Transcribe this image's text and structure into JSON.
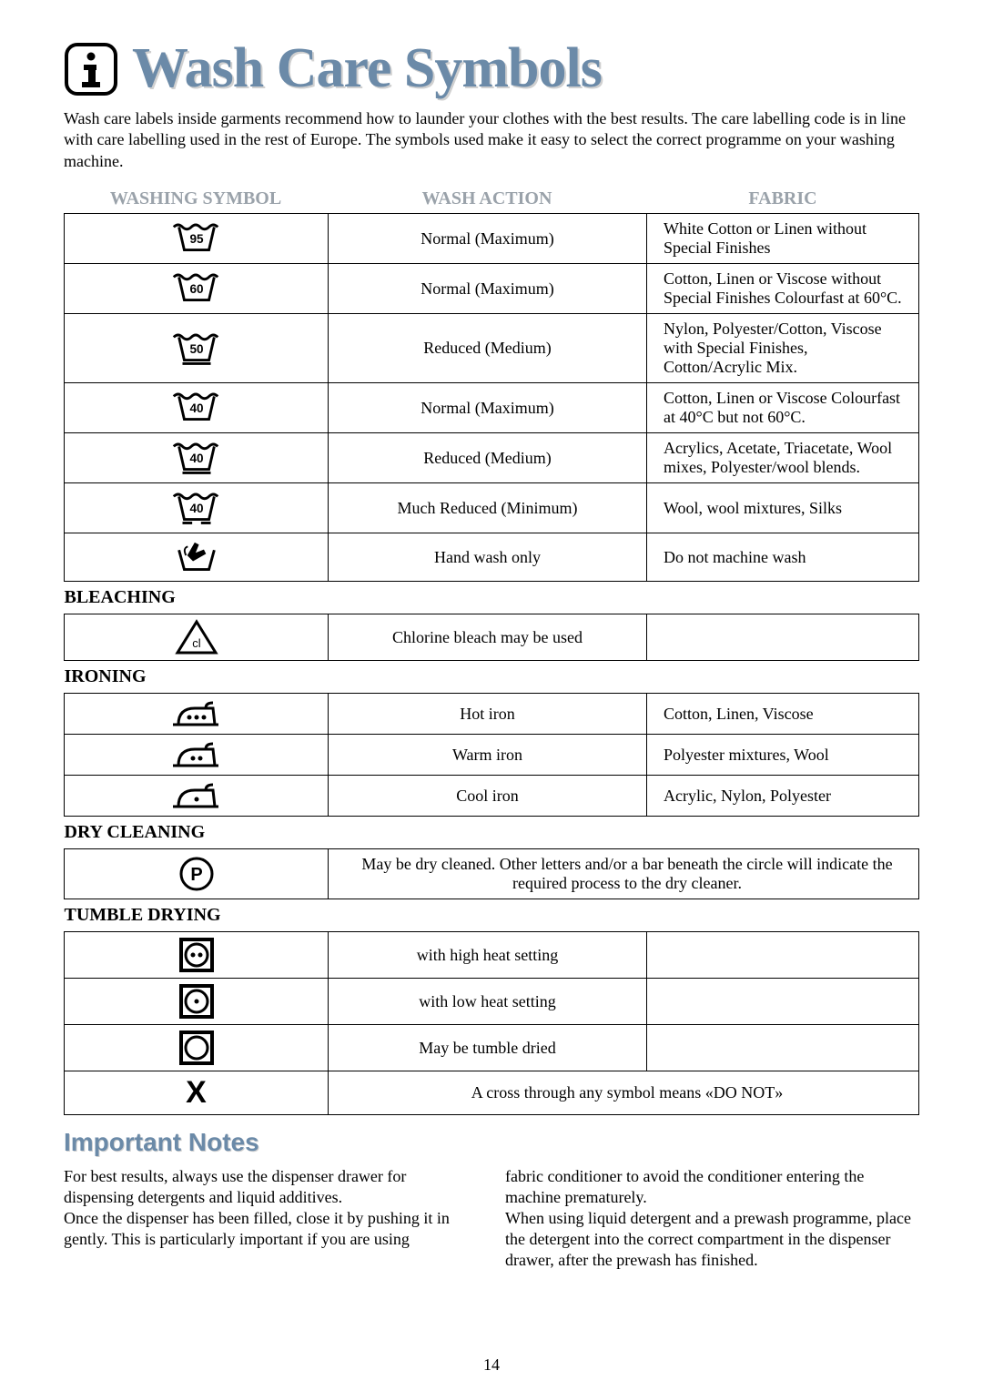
{
  "title": "Wash Care Symbols",
  "intro": "Wash care labels inside garments recommend how to launder your clothes with the best results. The care labelling code is in line with care labelling used in the rest of Europe. The symbols used make it easy to select the correct programme on your washing machine.",
  "headers": {
    "c1": "WASHING SYMBOL",
    "c2": "WASH ACTION",
    "c3": "FABRIC"
  },
  "wash_rows": [
    {
      "temp": "95",
      "bars": 0,
      "action": "Normal (Maximum)",
      "fabric": "White Cotton or Linen without Special Finishes"
    },
    {
      "temp": "60",
      "bars": 0,
      "action": "Normal (Maximum)",
      "fabric": "Cotton, Linen or Viscose without Special Finishes Colourfast at 60°C."
    },
    {
      "temp": "50",
      "bars": 1,
      "action": "Reduced (Medium)",
      "fabric": "Nylon, Polyester/Cotton, Viscose with Special Finishes, Cotton/Acrylic Mix."
    },
    {
      "temp": "40",
      "bars": 0,
      "action": "Normal (Maximum)",
      "fabric": "Cotton, Linen or Viscose Colourfast at 40°C but not 60°C."
    },
    {
      "temp": "40",
      "bars": 1,
      "action": "Reduced (Medium)",
      "fabric": "Acrylics, Acetate, Triacetate, Wool mixes, Polyester/wool blends."
    },
    {
      "temp": "40",
      "bars": 2,
      "action": "Much Reduced (Minimum)",
      "fabric": "Wool, wool mixtures, Silks"
    }
  ],
  "handwash": {
    "action": "Hand wash only",
    "fabric": "Do not machine wash"
  },
  "sections": {
    "bleach": "BLEACHING",
    "iron": "IRONING",
    "dry": "DRY CLEANING",
    "tumble": "TUMBLE DRYING"
  },
  "bleach_row": {
    "action": "Chlorine bleach may be used",
    "fabric": ""
  },
  "iron_rows": [
    {
      "dots": 3,
      "action": "Hot iron",
      "fabric": "Cotton, Linen, Viscose"
    },
    {
      "dots": 2,
      "action": "Warm iron",
      "fabric": "Polyester mixtures, Wool"
    },
    {
      "dots": 1,
      "action": "Cool iron",
      "fabric": "Acrylic, Nylon, Polyester"
    }
  ],
  "dryclean_text": "May be dry cleaned. Other letters and/or a bar beneath the circle will indicate the required process to the dry cleaner.",
  "tumble_rows": [
    {
      "dots": 2,
      "action": "with high heat setting"
    },
    {
      "dots": 1,
      "action": "with low heat setting"
    },
    {
      "dots": 0,
      "action": "May be tumble dried"
    }
  ],
  "cross_text": "A cross through any symbol means «DO NOT»",
  "notes_title": "Important Notes",
  "notes_col1": "For best results, always use the dispenser drawer for dispensing detergents and liquid additives.\nOnce the dispenser has been filled, close it by pushing it in gently. This is particularly important if you are using",
  "notes_col2": "fabric conditioner to avoid the conditioner entering the machine prematurely.\nWhen using liquid detergent and a prewash programme, place the detergent into the correct compartment in the dispenser drawer, after the prewash has finished.",
  "page_number": "14",
  "colors": {
    "heading": "#6b8aa8",
    "border": "#000000"
  }
}
